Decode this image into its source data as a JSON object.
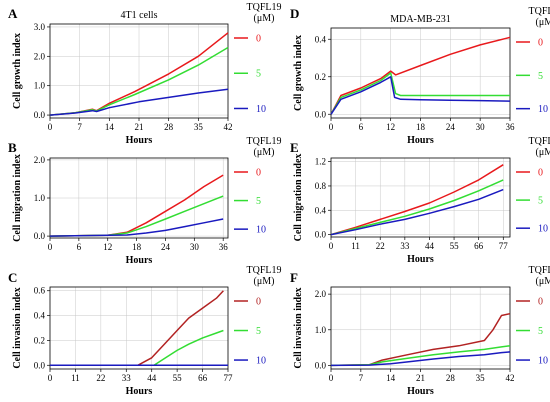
{
  "chart_data": [
    {
      "panel": "A",
      "type": "line",
      "title": "4T1 cells",
      "xlabel": "Hours",
      "ylabel": "Cell growth index",
      "xlim": [
        0,
        42
      ],
      "ylim": [
        -0.1,
        3.1
      ],
      "xticks": [
        0,
        7,
        14,
        21,
        28,
        35,
        42
      ],
      "yticks": [
        0.0,
        1.0,
        2.0,
        3.0
      ],
      "ytick_labels": [
        "0.0",
        "1.0",
        "2.0",
        "3.0"
      ],
      "grid": true,
      "legend": {
        "title": "TQFL19",
        "unit": "(μM)",
        "placement": "right",
        "entries": [
          "0",
          "5",
          "10"
        ]
      },
      "series": [
        {
          "name": "0",
          "color": "#e8191c",
          "x": [
            0,
            6,
            10,
            11,
            14,
            20,
            28,
            35,
            42
          ],
          "y": [
            0,
            0.08,
            0.2,
            0.15,
            0.4,
            0.8,
            1.4,
            2.0,
            2.8
          ]
        },
        {
          "name": "5",
          "color": "#33dd33",
          "x": [
            0,
            6,
            10,
            11,
            14,
            20,
            28,
            35,
            42
          ],
          "y": [
            0,
            0.08,
            0.18,
            0.14,
            0.35,
            0.7,
            1.2,
            1.7,
            2.3
          ]
        },
        {
          "name": "10",
          "color": "#1a1abf",
          "x": [
            0,
            6,
            10,
            11,
            14,
            21,
            28,
            35,
            42
          ],
          "y": [
            0,
            0.07,
            0.15,
            0.12,
            0.25,
            0.45,
            0.6,
            0.75,
            0.88
          ]
        }
      ]
    },
    {
      "panel": "B",
      "type": "line",
      "title": "",
      "xlabel": "Hours",
      "ylabel": "Cell migration index",
      "xlim": [
        0,
        37
      ],
      "ylim": [
        -0.05,
        2.05
      ],
      "xticks": [
        0,
        6,
        12,
        18,
        24,
        30,
        36
      ],
      "yticks": [
        0.0,
        1.0,
        2.0
      ],
      "ytick_labels": [
        "0.0",
        "1.0",
        "2.0"
      ],
      "grid": true,
      "legend": {
        "title": "TQFL19",
        "unit": "(μM)",
        "placement": "right",
        "entries": [
          "0",
          "5",
          "10"
        ]
      },
      "series": [
        {
          "name": "0",
          "color": "#e8191c",
          "x": [
            0,
            12,
            16,
            20,
            24,
            28,
            32,
            36
          ],
          "y": [
            0,
            0.02,
            0.1,
            0.35,
            0.65,
            0.95,
            1.3,
            1.6
          ]
        },
        {
          "name": "5",
          "color": "#33dd33",
          "x": [
            0,
            12,
            16,
            20,
            24,
            28,
            32,
            36
          ],
          "y": [
            0,
            0.02,
            0.08,
            0.25,
            0.45,
            0.65,
            0.85,
            1.05
          ]
        },
        {
          "name": "10",
          "color": "#1a1abf",
          "x": [
            0,
            16,
            20,
            24,
            28,
            32,
            36
          ],
          "y": [
            0,
            0.03,
            0.08,
            0.15,
            0.25,
            0.35,
            0.45
          ]
        }
      ]
    },
    {
      "panel": "C",
      "type": "line",
      "title": "",
      "xlabel": "Hours",
      "ylabel": "Cell invasion index",
      "xlim": [
        0,
        77
      ],
      "ylim": [
        -0.03,
        0.63
      ],
      "xticks": [
        0,
        11,
        22,
        33,
        44,
        55,
        66,
        77
      ],
      "yticks": [
        0.0,
        0.2,
        0.4,
        0.6
      ],
      "ytick_labels": [
        "0.0",
        "0.2",
        "0.4",
        "0.6"
      ],
      "grid": true,
      "legend": {
        "title": "TQFL19",
        "unit": "(μM)",
        "placement": "right",
        "entries": [
          "0",
          "5",
          "10"
        ]
      },
      "series": [
        {
          "name": "0",
          "color": "#b22222",
          "x": [
            0,
            38,
            44,
            50,
            55,
            60,
            66,
            72,
            75
          ],
          "y": [
            0,
            0,
            0.06,
            0.18,
            0.28,
            0.38,
            0.46,
            0.54,
            0.6
          ]
        },
        {
          "name": "5",
          "color": "#33dd33",
          "x": [
            0,
            45,
            50,
            55,
            60,
            66,
            72,
            75
          ],
          "y": [
            0,
            0,
            0.06,
            0.12,
            0.17,
            0.22,
            0.26,
            0.28
          ]
        },
        {
          "name": "10",
          "color": "#1a1abf",
          "x": [
            0,
            77
          ],
          "y": [
            0,
            0
          ]
        }
      ]
    },
    {
      "panel": "D",
      "type": "line",
      "title": "MDA-MB-231",
      "xlabel": "Hours",
      "ylabel": "Cell growth index",
      "xlim": [
        0,
        36
      ],
      "ylim": [
        -0.02,
        0.46
      ],
      "xticks": [
        0,
        6,
        12,
        18,
        24,
        30,
        36
      ],
      "yticks": [
        0.0,
        0.2,
        0.4
      ],
      "ytick_labels": [
        "0.0",
        "0.2",
        "0.4"
      ],
      "grid": true,
      "legend": {
        "title": "TQFL19",
        "unit": "(μM)",
        "placement": "right",
        "entries": [
          "0",
          "5",
          "10"
        ]
      },
      "series": [
        {
          "name": "0",
          "color": "#e8191c",
          "x": [
            0,
            2,
            6,
            10,
            12,
            13,
            18,
            24,
            30,
            36
          ],
          "y": [
            0,
            0.1,
            0.14,
            0.19,
            0.23,
            0.21,
            0.26,
            0.32,
            0.37,
            0.41
          ]
        },
        {
          "name": "5",
          "color": "#33dd33",
          "x": [
            0,
            2,
            6,
            10,
            12,
            13,
            14,
            18,
            24,
            30,
            36
          ],
          "y": [
            0,
            0.09,
            0.13,
            0.18,
            0.22,
            0.11,
            0.1,
            0.1,
            0.1,
            0.1,
            0.1
          ]
        },
        {
          "name": "10",
          "color": "#1a1abf",
          "x": [
            0,
            2,
            6,
            10,
            12,
            12.8,
            14,
            18,
            24,
            30,
            36
          ],
          "y": [
            0,
            0.08,
            0.12,
            0.17,
            0.2,
            0.09,
            0.08,
            0.077,
            0.075,
            0.073,
            0.07
          ]
        }
      ]
    },
    {
      "panel": "E",
      "type": "line",
      "title": "",
      "xlabel": "Hours",
      "ylabel": "Cell migration index",
      "xlim": [
        0,
        80
      ],
      "ylim": [
        -0.04,
        1.26
      ],
      "xticks": [
        0,
        11,
        22,
        33,
        44,
        55,
        66,
        77
      ],
      "yticks": [
        0.0,
        0.4,
        0.8,
        1.2
      ],
      "ytick_labels": [
        "0.0",
        "0.4",
        "0.8",
        "1.2"
      ],
      "grid": true,
      "legend": {
        "title": "TQFL19",
        "unit": "(μM)",
        "placement": "right",
        "entries": [
          "0",
          "5",
          "10"
        ]
      },
      "series": [
        {
          "name": "0",
          "color": "#e8191c",
          "x": [
            0,
            11,
            22,
            33,
            44,
            55,
            66,
            77
          ],
          "y": [
            0,
            0.12,
            0.25,
            0.38,
            0.52,
            0.7,
            0.9,
            1.15
          ]
        },
        {
          "name": "5",
          "color": "#33dd33",
          "x": [
            0,
            11,
            22,
            33,
            44,
            55,
            66,
            77
          ],
          "y": [
            0,
            0.1,
            0.2,
            0.3,
            0.42,
            0.56,
            0.72,
            0.9
          ]
        },
        {
          "name": "10",
          "color": "#1a1abf",
          "x": [
            0,
            11,
            22,
            33,
            44,
            55,
            66,
            77
          ],
          "y": [
            0,
            0.08,
            0.17,
            0.25,
            0.35,
            0.46,
            0.58,
            0.74
          ]
        }
      ]
    },
    {
      "panel": "F",
      "type": "line",
      "title": "",
      "xlabel": "Hours",
      "ylabel": "Cell invasion index",
      "xlim": [
        0,
        42
      ],
      "ylim": [
        -0.1,
        2.2
      ],
      "xticks": [
        0,
        7,
        14,
        21,
        28,
        35,
        42
      ],
      "yticks": [
        0.0,
        1.0,
        2.0
      ],
      "ytick_labels": [
        "0.0",
        "1.0",
        "2.0"
      ],
      "grid": true,
      "legend": {
        "title": "TQFL19",
        "unit": "(μM)",
        "placement": "right",
        "entries": [
          "0",
          "5",
          "10"
        ]
      },
      "series": [
        {
          "name": "0",
          "color": "#b22222",
          "x": [
            0,
            9,
            12,
            18,
            24,
            30,
            36,
            38,
            40,
            42
          ],
          "y": [
            0,
            0.02,
            0.15,
            0.3,
            0.45,
            0.55,
            0.7,
            1.0,
            1.4,
            1.45
          ]
        },
        {
          "name": "5",
          "color": "#33dd33",
          "x": [
            0,
            9,
            12,
            18,
            24,
            30,
            36,
            40,
            42
          ],
          "y": [
            0,
            0.02,
            0.1,
            0.2,
            0.3,
            0.38,
            0.45,
            0.52,
            0.55
          ]
        },
        {
          "name": "10",
          "color": "#1a1abf",
          "x": [
            0,
            9,
            14,
            18,
            24,
            30,
            36,
            40,
            42
          ],
          "y": [
            0,
            0.01,
            0.05,
            0.1,
            0.18,
            0.25,
            0.3,
            0.36,
            0.38
          ]
        }
      ]
    }
  ]
}
